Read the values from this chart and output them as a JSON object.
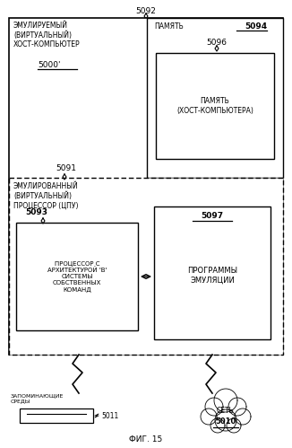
{
  "title_id": "5092",
  "fig_label": "ФИГ. 15",
  "outer_label": "ЭМУЛИРУЕМЫЙ\n(ВИРТУАЛЬНЫЙ)\nХОСТ-КОМПЬЮТЕР",
  "outer_id": "5000'",
  "mem_area_label": "ПАМЯТЬ",
  "mem_area_id": "5094",
  "inner_mem_label": "ПАМЯТЬ\n(ХОСТ-КОМПЬЮТЕРА)",
  "inner_mem_id": "5096",
  "dashed_label": "ЭМУЛИРОВАННЫЙ\n(ВИРТУАЛЬНЫЙ)\nПРОЦЕССОР (ЦПУ)",
  "dashed_id": "5091",
  "cpu_label": "ПРОЦЕССОР С\nАРХИТЕКТУРОЙ 'В'\nСИСТЕМЫ\nСОБСТВЕННЫХ\nКОМАНД",
  "cpu_id": "5093",
  "emul_label": "ПРОГРАММЫ\nЭМУЛЯЦИИ",
  "emul_id": "5097",
  "storage_label": "ЗАПОМИНАЮЩИЕ\nСРЕДЫ",
  "storage_id": "5011",
  "net_label": "СЕТЬ",
  "net_id": "5010",
  "bg": "#ffffff",
  "fg": "#000000"
}
